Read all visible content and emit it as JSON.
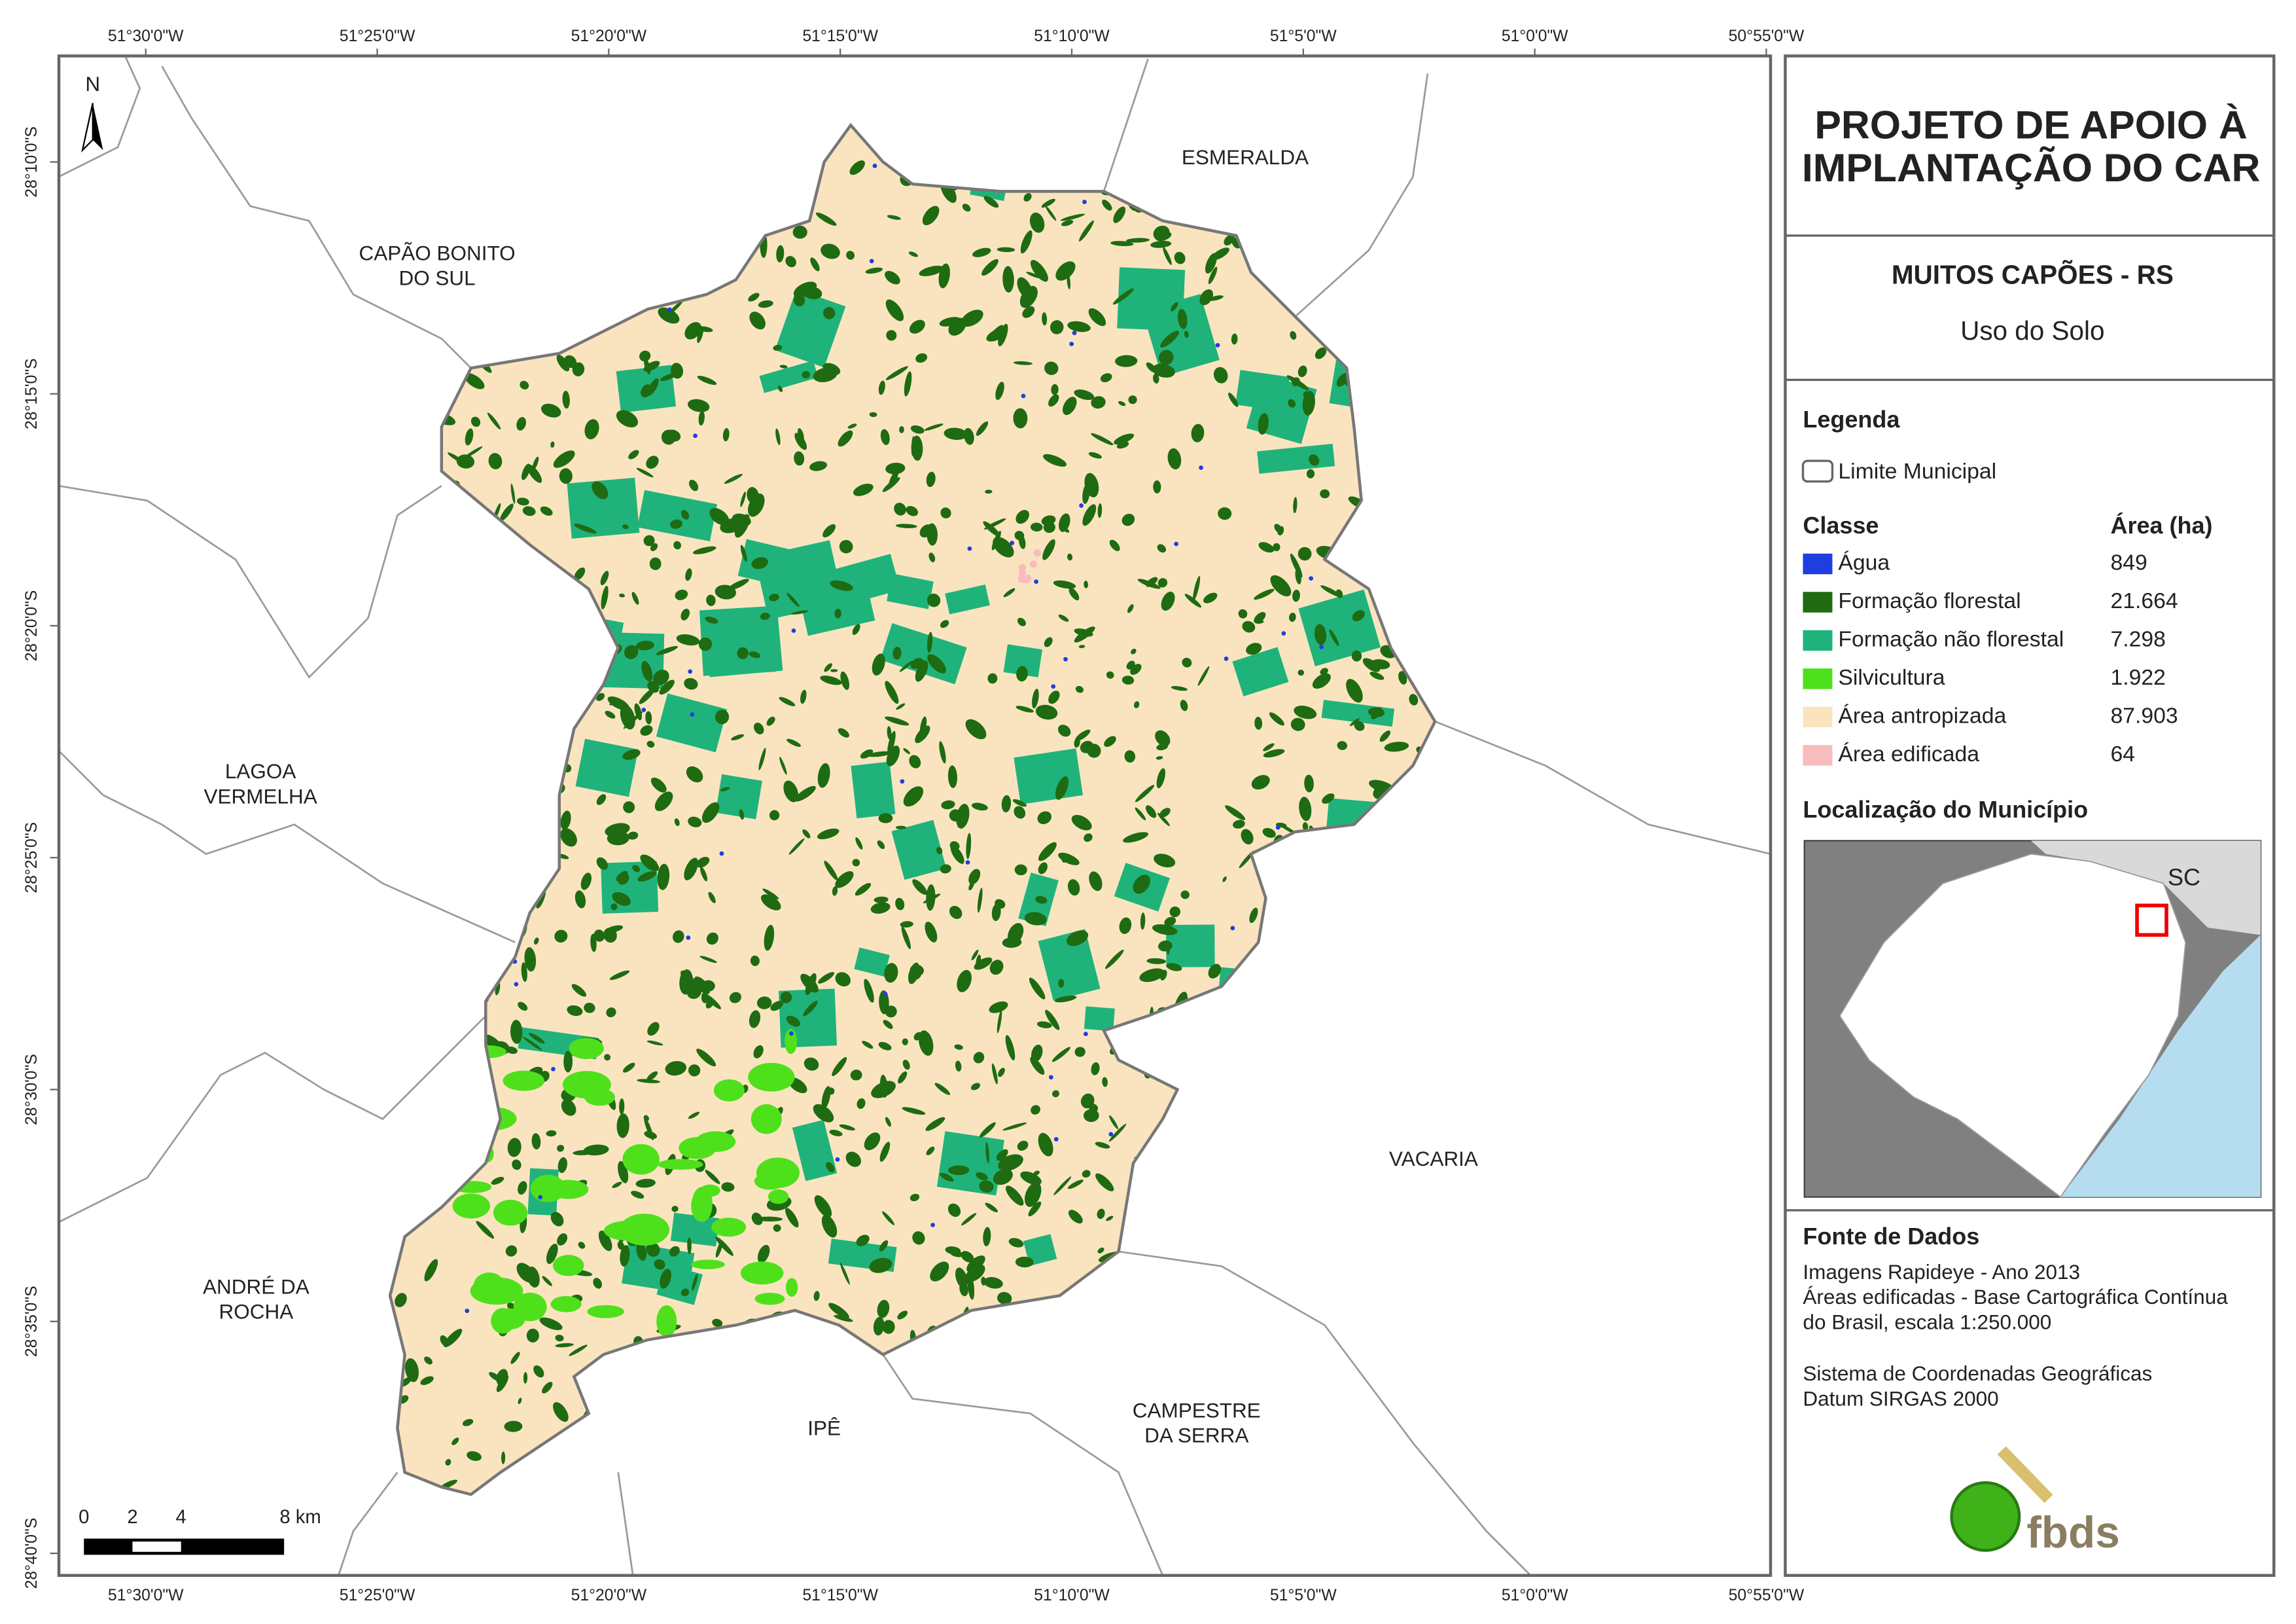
{
  "map": {
    "top_coords": [
      "51°30'0\"W",
      "51°25'0\"W",
      "51°20'0\"W",
      "51°15'0\"W",
      "51°10'0\"W",
      "51°5'0\"W",
      "51°0'0\"W",
      "50°55'0\"W"
    ],
    "left_coords": [
      "28°10'0\"S",
      "28°15'0\"S",
      "28°20'0\"S",
      "28°25'0\"S",
      "28°30'0\"S",
      "28°35'0\"S",
      "28°40'0\"S"
    ],
    "places": [
      [
        "ESMERALDA"
      ],
      [
        "CAPÃO BONITO",
        "DO SUL"
      ],
      [
        "LAGOA",
        "VERMELHA"
      ],
      [
        "ANDRÉ DA",
        "ROCHA"
      ],
      [
        "IPÊ"
      ],
      [
        "CAMPESTRE",
        "DA SERRA"
      ],
      [
        "VACARIA"
      ]
    ],
    "north": "N",
    "scale_labels": [
      "0",
      "2",
      "4",
      "8 km"
    ]
  },
  "panel": {
    "title": [
      "PROJETO DE APOIO À",
      "IMPLANTAÇÃO DO CAR"
    ],
    "municipality": "MUITOS CAPÕES - RS",
    "subtitle": "Uso do Solo",
    "legend_title": "Legenda",
    "boundary": "Limite Municipal",
    "class_header": "Classe",
    "area_header": "Área (ha)",
    "classes": [
      {
        "name": "Água",
        "area": "849",
        "color": "#1f3de0"
      },
      {
        "name": "Formação florestal",
        "area": "21.664",
        "color": "#1e6b12"
      },
      {
        "name": "Formação não florestal",
        "area": "7.298",
        "color": "#1fb37b"
      },
      {
        "name": "Silvicultura",
        "area": "1.922",
        "color": "#4fe01c"
      },
      {
        "name": "Área antropizada",
        "area": "87.903",
        "color": "#fae4c0"
      },
      {
        "name": "Área edificada",
        "area": "64",
        "color": "#f7bcbc"
      }
    ],
    "location_title": "Localização do Município",
    "inset_label": "SC",
    "source_title": "Fonte de Dados",
    "source_lines": [
      "Imagens Rapideye - Ano 2013",
      "Áreas edificadas - Base Cartográfica Contínua",
      "do Brasil, escala 1:250.000"
    ],
    "crs_lines": [
      "Sistema de Coordenadas Geográficas",
      "Datum SIRGAS 2000"
    ],
    "logo": "fbds"
  }
}
